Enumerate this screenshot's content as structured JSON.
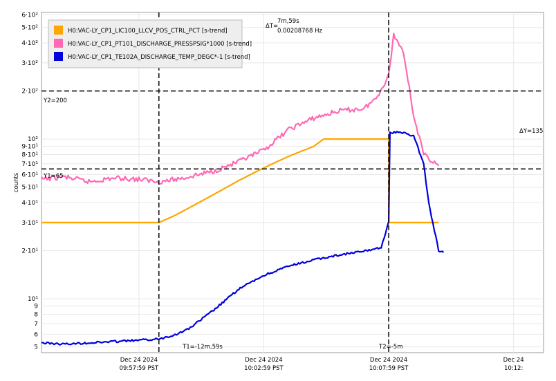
{
  "chart_data": {
    "type": "line",
    "title": "",
    "ylabel": "counts",
    "xlabel": "",
    "yscale": "log",
    "ylim": [
      4.6,
      620
    ],
    "xlim_minutes": [
      -3.9,
      16.2
    ],
    "grid": true,
    "legend_position": "top-left",
    "y_ticks": [
      {
        "value": 5,
        "label": "5"
      },
      {
        "value": 6,
        "label": "6"
      },
      {
        "value": 7,
        "label": "7"
      },
      {
        "value": 8,
        "label": "8"
      },
      {
        "value": 9,
        "label": "9"
      },
      {
        "value": 10,
        "label": "10¹"
      },
      {
        "value": 20,
        "label": "2·10¹"
      },
      {
        "value": 30,
        "label": "3·10¹"
      },
      {
        "value": 40,
        "label": "4·10¹"
      },
      {
        "value": 50,
        "label": "5·10¹"
      },
      {
        "value": 60,
        "label": "6·10¹"
      },
      {
        "value": 70,
        "label": "7·10¹"
      },
      {
        "value": 80,
        "label": "8·10¹"
      },
      {
        "value": 90,
        "label": "9·10¹"
      },
      {
        "value": 100,
        "label": "10²"
      },
      {
        "value": 200,
        "label": "2·10²"
      },
      {
        "value": 300,
        "label": "3·10²"
      },
      {
        "value": 400,
        "label": "4·10²"
      },
      {
        "value": 500,
        "label": "5·10²"
      },
      {
        "value": 600,
        "label": "6·10²"
      }
    ],
    "x_ticks": [
      {
        "minute": 0,
        "line1": "Dec 24 2024",
        "line2": "09:57:59 PST"
      },
      {
        "minute": 5,
        "line1": "Dec 24 2024",
        "line2": "10:02:59 PST"
      },
      {
        "minute": 10,
        "line1": "Dec 24 2024",
        "line2": "10:07:59 PST"
      },
      {
        "minute": 15,
        "line1": "Dec 24",
        "line2": "10:12:"
      }
    ],
    "series": [
      {
        "name": "H0:VAC-LY_CP1_LIC100_LLCV_POS_CTRL_PCT [s-trend]",
        "color": "#ffa500",
        "points": [
          [
            -3.9,
            30
          ],
          [
            0.8,
            30
          ],
          [
            1.4,
            33
          ],
          [
            2,
            37
          ],
          [
            3,
            45
          ],
          [
            4,
            55
          ],
          [
            5,
            66
          ],
          [
            6,
            78
          ],
          [
            7,
            90
          ],
          [
            7.4,
            100
          ],
          [
            10,
            100
          ],
          [
            10,
            30
          ],
          [
            12,
            30
          ]
        ]
      },
      {
        "name": "H0:VAC-LY_CP1_PT101_DISCHARGE_PRESSPSIG*1000 [s-trend]",
        "color": "#ff69b4",
        "points": [
          [
            -3.9,
            56
          ],
          [
            -3,
            58
          ],
          [
            -2,
            54
          ],
          [
            -1,
            57
          ],
          [
            0,
            56
          ],
          [
            0.8,
            54
          ],
          [
            1.5,
            56
          ],
          [
            2,
            58
          ],
          [
            3,
            63
          ],
          [
            4,
            72
          ],
          [
            5,
            85
          ],
          [
            6,
            115
          ],
          [
            7,
            135
          ],
          [
            8,
            150
          ],
          [
            9,
            155
          ],
          [
            9.5,
            180
          ],
          [
            10,
            250
          ],
          [
            10.2,
            450
          ],
          [
            10.6,
            350
          ],
          [
            11,
            140
          ],
          [
            11.4,
            80
          ],
          [
            12,
            68
          ]
        ]
      },
      {
        "name": "H0:VAC-LY_CP1_TE102A_DISCHARGE_TEMP_DEGC*-1 [s-trend]",
        "color": "#0000dd",
        "points": [
          [
            -3.9,
            5.3
          ],
          [
            -3,
            5.2
          ],
          [
            -2,
            5.3
          ],
          [
            -1,
            5.4
          ],
          [
            0,
            5.5
          ],
          [
            0.8,
            5.6
          ],
          [
            1.5,
            6
          ],
          [
            2,
            6.5
          ],
          [
            3,
            8.5
          ],
          [
            4,
            11.5
          ],
          [
            5,
            14
          ],
          [
            6,
            16
          ],
          [
            7,
            17.5
          ],
          [
            8,
            18.8
          ],
          [
            9,
            19.8
          ],
          [
            9.7,
            21
          ],
          [
            10,
            30
          ],
          [
            10.05,
            110
          ],
          [
            10.5,
            110
          ],
          [
            11,
            105
          ],
          [
            11.4,
            70
          ],
          [
            11.6,
            40
          ],
          [
            12,
            20
          ],
          [
            12.2,
            19.5
          ]
        ]
      }
    ],
    "cursors": {
      "T1": "T1=-12m,59s",
      "T2": "T2=-5m",
      "Y1": "Y1=65",
      "Y2": "Y2=200",
      "dT_label": "ΔT=",
      "dT_value": "7m,59s",
      "freq": "0.00208768 Hz",
      "dY": "ΔY=135",
      "t1_minute": 0.8,
      "t2_minute": 10,
      "y1_value": 65,
      "y2_value": 200
    }
  }
}
